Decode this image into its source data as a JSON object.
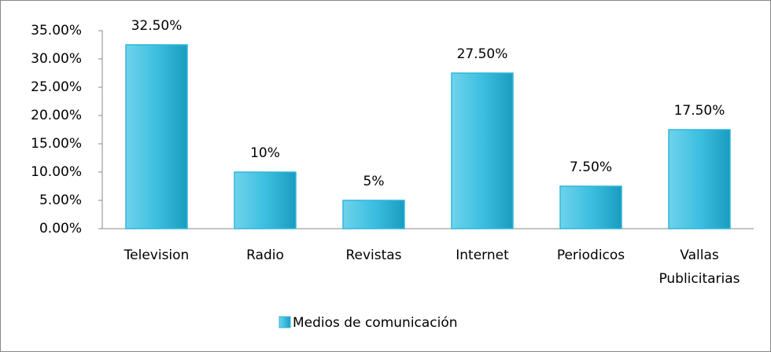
{
  "chart_data": {
    "type": "bar",
    "categories": [
      "Television",
      "Radio",
      "Revistas",
      "Internet",
      "Periodicos",
      "Vallas Publicitarias"
    ],
    "series": [
      {
        "name": "Medios de comunicación",
        "color": "#31b6d8",
        "values": [
          32.5,
          10,
          5,
          27.5,
          7.5,
          17.5
        ],
        "value_labels": [
          "32.50%",
          "10%",
          "5%",
          "27.50%",
          "7.50%",
          "17.50%"
        ]
      }
    ],
    "ylim": [
      0,
      35
    ],
    "yticks": [
      {
        "value": 0,
        "label": "0.00%"
      },
      {
        "value": 5,
        "label": "5.00%"
      },
      {
        "value": 10,
        "label": "10.00%"
      },
      {
        "value": 15,
        "label": "15.00%"
      },
      {
        "value": 20,
        "label": "20.00%"
      },
      {
        "value": 25,
        "label": "25.00%"
      },
      {
        "value": 30,
        "label": "30.00%"
      },
      {
        "value": 35,
        "label": "35.00%"
      }
    ],
    "legend": "bottom"
  }
}
